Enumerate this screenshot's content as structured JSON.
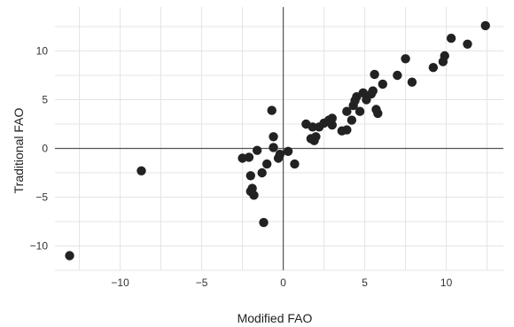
{
  "chart_data": {
    "type": "scatter",
    "xlabel": "Modified FAO",
    "ylabel": "Traditional FAO",
    "xlim": [
      -14,
      13.5
    ],
    "ylim": [
      -12.5,
      14.5
    ],
    "xticks": [
      -10,
      -5,
      0,
      5,
      10
    ],
    "yticks": [
      -10,
      -5,
      0,
      5,
      10
    ],
    "xtick_labels": [
      "−10",
      "−5",
      "0",
      "5",
      "10"
    ],
    "ytick_labels": [
      "−10",
      "−5",
      "0",
      "5",
      "10"
    ],
    "grid": true,
    "zero_lines": true,
    "point_color": "#222222",
    "points": [
      [
        -13.1,
        -11.0
      ],
      [
        -8.7,
        -2.3
      ],
      [
        -2.5,
        -1.0
      ],
      [
        -2.1,
        -0.9
      ],
      [
        -2.0,
        -2.8
      ],
      [
        -2.0,
        -4.4
      ],
      [
        -1.9,
        -4.1
      ],
      [
        -1.8,
        -4.8
      ],
      [
        -1.6,
        -0.2
      ],
      [
        -1.3,
        -2.5
      ],
      [
        -1.2,
        -7.6
      ],
      [
        -1.0,
        -1.6
      ],
      [
        -0.7,
        3.9
      ],
      [
        -0.6,
        1.2
      ],
      [
        -0.6,
        0.1
      ],
      [
        -0.3,
        -1.0
      ],
      [
        -0.2,
        -0.6
      ],
      [
        0.3,
        -0.3
      ],
      [
        0.7,
        -1.6
      ],
      [
        1.4,
        2.5
      ],
      [
        1.7,
        1.0
      ],
      [
        1.8,
        2.2
      ],
      [
        1.9,
        0.8
      ],
      [
        2.0,
        1.2
      ],
      [
        2.2,
        2.2
      ],
      [
        2.5,
        2.6
      ],
      [
        2.8,
        2.9
      ],
      [
        3.0,
        2.4
      ],
      [
        3.0,
        3.1
      ],
      [
        3.6,
        1.8
      ],
      [
        3.9,
        1.9
      ],
      [
        3.9,
        3.8
      ],
      [
        4.2,
        2.9
      ],
      [
        4.3,
        4.4
      ],
      [
        4.4,
        4.9
      ],
      [
        4.5,
        5.3
      ],
      [
        4.7,
        3.8
      ],
      [
        4.9,
        5.7
      ],
      [
        5.1,
        5.0
      ],
      [
        5.4,
        5.6
      ],
      [
        5.5,
        5.9
      ],
      [
        5.6,
        7.6
      ],
      [
        5.7,
        4.0
      ],
      [
        5.8,
        3.6
      ],
      [
        6.1,
        6.6
      ],
      [
        7.0,
        7.5
      ],
      [
        7.5,
        9.2
      ],
      [
        7.9,
        6.8
      ],
      [
        9.2,
        8.3
      ],
      [
        9.8,
        8.9
      ],
      [
        9.9,
        9.5
      ],
      [
        10.3,
        11.3
      ],
      [
        11.3,
        10.7
      ],
      [
        12.4,
        12.6
      ]
    ]
  }
}
